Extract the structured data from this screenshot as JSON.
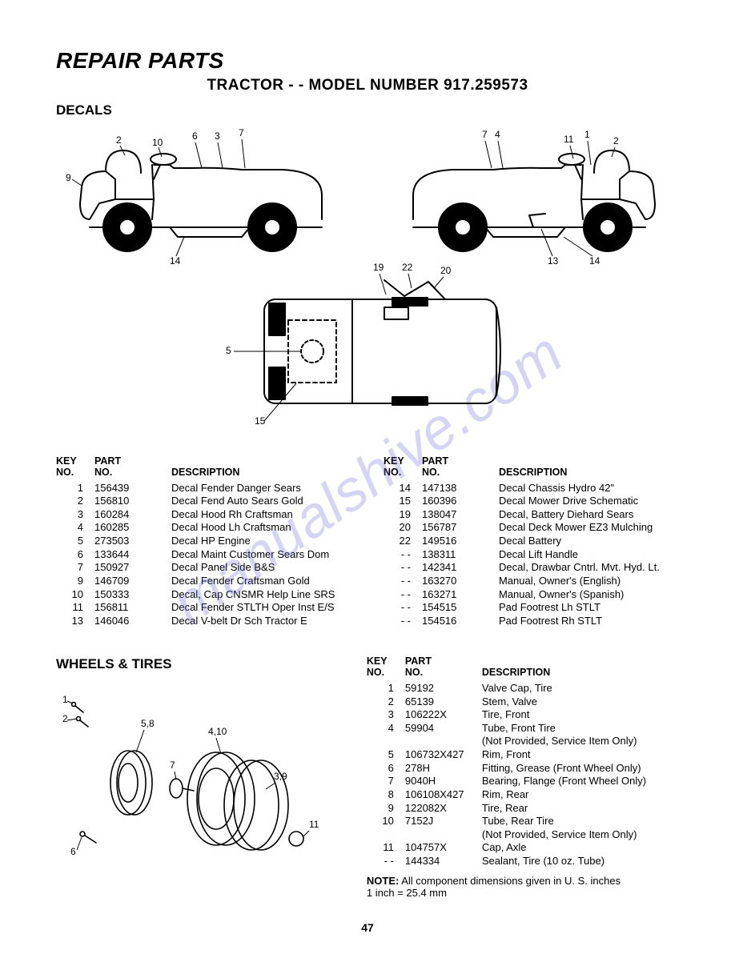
{
  "watermark": "manualshive.com",
  "page_title": "REPAIR PARTS",
  "subtitle": "TRACTOR - - MODEL NUMBER 917.259573",
  "section_decals": "DECALS",
  "section_wheels": "WHEELS & TIRES",
  "headers": {
    "key": "KEY\nNO.",
    "part": "PART\nNO.",
    "desc": "DESCRIPTION"
  },
  "decals_left": [
    {
      "k": "1",
      "p": "156439",
      "d": "Decal Fender Danger Sears"
    },
    {
      "k": "2",
      "p": "156810",
      "d": "Decal Fend Auto Sears Gold"
    },
    {
      "k": "3",
      "p": "160284",
      "d": "Decal Hood Rh Craftsman"
    },
    {
      "k": "4",
      "p": "160285",
      "d": "Decal Hood Lh Craftsman"
    },
    {
      "k": "5",
      "p": "273503",
      "d": "Decal HP Engine"
    },
    {
      "k": "6",
      "p": "133644",
      "d": "Decal Maint Customer Sears Dom"
    },
    {
      "k": "7",
      "p": "150927",
      "d": "Decal Panel Side B&S"
    },
    {
      "k": "9",
      "p": "146709",
      "d": "Decal Fender Craftsman Gold"
    },
    {
      "k": "10",
      "p": "150333",
      "d": "Decal, Cap CNSMR Help Line SRS"
    },
    {
      "k": "11",
      "p": "156811",
      "d": "Decal Fender STLTH Oper Inst E/S"
    },
    {
      "k": "13",
      "p": "146046",
      "d": "Decal V-belt Dr Sch Tractor E"
    }
  ],
  "decals_right": [
    {
      "k": "14",
      "p": "147138",
      "d": "Decal Chassis Hydro 42\""
    },
    {
      "k": "15",
      "p": "160396",
      "d": "Decal Mower Drive Schematic"
    },
    {
      "k": "19",
      "p": "138047",
      "d": "Decal, Battery Diehard Sears"
    },
    {
      "k": "20",
      "p": "156787",
      "d": "Decal Deck Mower EZ3 Mulching"
    },
    {
      "k": "22",
      "p": "149516",
      "d": "Decal Battery"
    },
    {
      "k": "- -",
      "p": "138311",
      "d": "Decal Lift Handle"
    },
    {
      "k": "- -",
      "p": "142341",
      "d": "Decal, Drawbar Cntrl. Mvt. Hyd. Lt."
    },
    {
      "k": "- -",
      "p": "163270",
      "d": "Manual, Owner's (English)"
    },
    {
      "k": "- -",
      "p": "163271",
      "d": "Manual, Owner's (Spanish)"
    },
    {
      "k": "- -",
      "p": "154515",
      "d": "Pad Footrest Lh STLT"
    },
    {
      "k": "- -",
      "p": "154516",
      "d": "Pad Footrest Rh STLT"
    }
  ],
  "wheels": [
    {
      "k": "1",
      "p": "59192",
      "d": "Valve Cap, Tire"
    },
    {
      "k": "2",
      "p": "65139",
      "d": "Stem, Valve"
    },
    {
      "k": "3",
      "p": "106222X",
      "d": "Tire, Front"
    },
    {
      "k": "4",
      "p": "59904",
      "d": "Tube, Front Tire\n(Not Provided, Service Item Only)"
    },
    {
      "k": "5",
      "p": "106732X427",
      "d": "Rim, Front"
    },
    {
      "k": "6",
      "p": "278H",
      "d": "Fitting, Grease (Front Wheel Only)"
    },
    {
      "k": "7",
      "p": "9040H",
      "d": "Bearing, Flange (Front Wheel Only)"
    },
    {
      "k": "8",
      "p": "106108X427",
      "d": "Rim, Rear"
    },
    {
      "k": "9",
      "p": "122082X",
      "d": "Tire, Rear"
    },
    {
      "k": "10",
      "p": "7152J",
      "d": "Tube, Rear Tire\n(Not Provided, Service Item Only)"
    },
    {
      "k": "11",
      "p": "104757X",
      "d": "Cap, Axle"
    },
    {
      "k": "- -",
      "p": "144334",
      "d": "Sealant, Tire (10 oz. Tube)"
    }
  ],
  "note_label": "NOTE:",
  "note_text": "All component dimensions given in U. S. inches\n1 inch = 25.4 mm",
  "page_number": "47",
  "diagram": {
    "callouts_left": [
      "2",
      "10",
      "6",
      "3",
      "7",
      "9",
      "14"
    ],
    "callouts_right": [
      "7",
      "4",
      "1",
      "11",
      "2",
      "13",
      "14"
    ],
    "callouts_top": [
      "19",
      "22",
      "20",
      "5",
      "15"
    ],
    "stroke": "#000000",
    "stroke_width": 2
  },
  "wheel_diagram": {
    "callouts": [
      "1",
      "2",
      "5,8",
      "4,10",
      "7",
      "3,9",
      "6",
      "11"
    ],
    "stroke": "#000000",
    "stroke_width": 1.6
  }
}
